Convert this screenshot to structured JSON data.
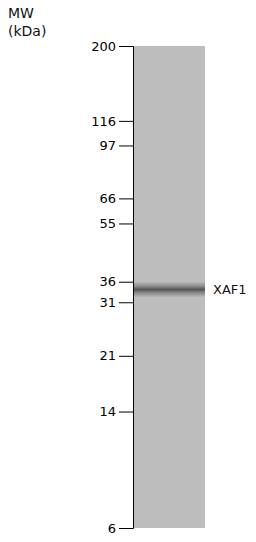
{
  "chart_data": {
    "type": "gel",
    "title": "MW",
    "subtitle": "(kDa)",
    "log": "y",
    "ylim": [
      6,
      200
    ],
    "yticks": [
      200,
      116,
      97,
      66,
      55,
      36,
      31,
      21,
      14,
      6
    ],
    "series": [
      {
        "name": "XAF1",
        "color": "#555555",
        "values": [
          34
        ]
      }
    ]
  }
}
